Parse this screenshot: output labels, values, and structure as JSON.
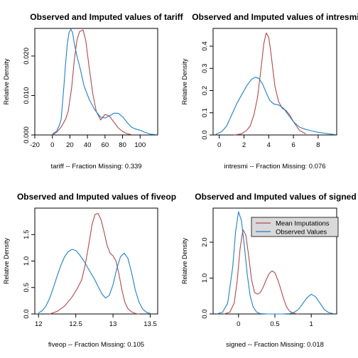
{
  "colors": {
    "imputed": "#b5474b",
    "observed": "#1f7fce"
  },
  "legend": {
    "entries": [
      "Mean Imputations",
      "Observed Values"
    ],
    "placement": "top-right of bottom-right panel"
  },
  "chart_data": [
    {
      "type": "line",
      "title": "Observed and Imputed values of tariff",
      "xlabel": "tariff  --  Fraction Missing: 0.339",
      "ylabel": "Relative Density",
      "xlim": [
        -20,
        120
      ],
      "ylim": [
        0,
        0.027
      ],
      "xticks": [
        -20,
        0,
        20,
        40,
        60,
        80,
        100
      ],
      "yticks": [
        0.0,
        0.01,
        0.02
      ],
      "ytick_labels": [
        "0.000",
        "0.010",
        "0.020"
      ],
      "series": [
        {
          "name": "Mean Imputations",
          "x": [
            0,
            5,
            10,
            15,
            18,
            22,
            25,
            28,
            31,
            35,
            38,
            42,
            46,
            50,
            55,
            60,
            65,
            70,
            75,
            80,
            85,
            90
          ],
          "y": [
            0.0,
            0.0007,
            0.002,
            0.004,
            0.006,
            0.012,
            0.019,
            0.024,
            0.0262,
            0.0266,
            0.024,
            0.017,
            0.0105,
            0.006,
            0.0038,
            0.0052,
            0.0048,
            0.0033,
            0.0018,
            0.0009,
            0.0003,
            0.0001
          ]
        },
        {
          "name": "Observed Values",
          "x": [
            0,
            5,
            8,
            10,
            13,
            15,
            17,
            19,
            21,
            23,
            25,
            28,
            32,
            36,
            42,
            48,
            55,
            60,
            65,
            70,
            75,
            80,
            85,
            90,
            95,
            100,
            105,
            112,
            118
          ],
          "y": [
            0.0002,
            0.001,
            0.0025,
            0.004,
            0.012,
            0.018,
            0.023,
            0.026,
            0.0268,
            0.026,
            0.0232,
            0.02,
            0.0165,
            0.0125,
            0.009,
            0.0065,
            0.0045,
            0.0043,
            0.0048,
            0.0055,
            0.0055,
            0.0046,
            0.0032,
            0.002,
            0.0015,
            0.0012,
            0.0007,
            0.0002,
            0.0001
          ]
        }
      ]
    },
    {
      "type": "line",
      "title": "Observed and Imputed values of intresmi",
      "xlabel": "intresmi  --  Fraction Missing: 0.076",
      "ylabel": "Relative Density",
      "xlim": [
        -0.5,
        9.5
      ],
      "ylim": [
        0,
        0.48
      ],
      "xticks": [
        0,
        2,
        4,
        6,
        8
      ],
      "yticks": [
        0.0,
        0.1,
        0.2,
        0.3,
        0.4
      ],
      "ytick_labels": [
        "0.0",
        "0.1",
        "0.2",
        "0.3",
        "0.4"
      ],
      "series": [
        {
          "name": "Mean Imputations",
          "x": [
            1.2,
            1.8,
            2.2,
            2.5,
            2.8,
            3.1,
            3.4,
            3.6,
            3.8,
            4.0,
            4.2,
            4.5,
            4.8,
            5.1,
            5.4,
            5.7,
            6.0,
            6.5,
            7.0
          ],
          "y": [
            0.0,
            0.005,
            0.02,
            0.04,
            0.09,
            0.17,
            0.31,
            0.41,
            0.46,
            0.44,
            0.36,
            0.22,
            0.15,
            0.12,
            0.11,
            0.09,
            0.06,
            0.02,
            0.005
          ]
        },
        {
          "name": "Observed Values",
          "x": [
            -0.3,
            0.2,
            0.6,
            1.0,
            1.4,
            1.8,
            2.2,
            2.6,
            2.9,
            3.2,
            3.5,
            3.8,
            4.1,
            4.4,
            4.8,
            5.2,
            5.6,
            6.0,
            6.5,
            7.0,
            7.5,
            8.0,
            8.5,
            9.0,
            9.4
          ],
          "y": [
            0.003,
            0.015,
            0.04,
            0.09,
            0.14,
            0.18,
            0.22,
            0.25,
            0.26,
            0.255,
            0.23,
            0.19,
            0.155,
            0.14,
            0.135,
            0.12,
            0.09,
            0.06,
            0.035,
            0.025,
            0.018,
            0.012,
            0.008,
            0.004,
            0.002
          ]
        }
      ]
    },
    {
      "type": "line",
      "title": "Observed and Imputed values of fiveop",
      "xlabel": "fiveop  --  Fraction Missing: 0.105",
      "ylabel": "Relative Density",
      "xlim": [
        11.95,
        13.6
      ],
      "ylim": [
        0,
        2.0
      ],
      "xticks": [
        12.0,
        12.5,
        13.0,
        13.5
      ],
      "yticks": [
        0.0,
        0.5,
        1.0,
        1.5
      ],
      "ytick_labels": [
        "0.0",
        "0.5",
        "1.0",
        "1.5"
      ],
      "series": [
        {
          "name": "Mean Imputations",
          "x": [
            12.15,
            12.25,
            12.35,
            12.45,
            12.52,
            12.58,
            12.63,
            12.68,
            12.72,
            12.76,
            12.8,
            12.84,
            12.88,
            12.92,
            12.96,
            13.0,
            13.04,
            13.08,
            13.12,
            13.16,
            13.2,
            13.25,
            13.3,
            13.35
          ],
          "y": [
            0.0,
            0.05,
            0.15,
            0.32,
            0.48,
            0.65,
            0.95,
            1.35,
            1.7,
            1.88,
            1.9,
            1.78,
            1.55,
            1.3,
            1.15,
            1.1,
            1.0,
            0.75,
            0.45,
            0.22,
            0.1,
            0.04,
            0.01,
            0.0
          ]
        },
        {
          "name": "Observed Values",
          "x": [
            12.0,
            12.05,
            12.1,
            12.15,
            12.2,
            12.25,
            12.3,
            12.35,
            12.4,
            12.45,
            12.5,
            12.55,
            12.6,
            12.65,
            12.7,
            12.75,
            12.8,
            12.85,
            12.9,
            12.95,
            13.0,
            13.05,
            13.1,
            13.15,
            13.2,
            13.25,
            13.3,
            13.35,
            13.4,
            13.45,
            13.5
          ],
          "y": [
            0.02,
            0.06,
            0.15,
            0.3,
            0.5,
            0.72,
            0.92,
            1.08,
            1.18,
            1.22,
            1.2,
            1.12,
            1.02,
            0.9,
            0.78,
            0.66,
            0.52,
            0.38,
            0.3,
            0.35,
            0.55,
            0.85,
            1.08,
            1.15,
            1.05,
            0.78,
            0.45,
            0.22,
            0.09,
            0.03,
            0.01
          ]
        }
      ]
    },
    {
      "type": "line",
      "title": "Observed and Imputed values of signed",
      "xlabel": "signed  --  Fraction Missing: 0.018",
      "ylabel": "Relative Density",
      "xlim": [
        -0.35,
        1.35
      ],
      "ylim": [
        0,
        2.95
      ],
      "xticks": [
        0.0,
        0.5,
        1.0
      ],
      "yticks": [
        0.0,
        1.0,
        2.0
      ],
      "ytick_labels": [
        "0.0",
        "1.0",
        "2.0"
      ],
      "series": [
        {
          "name": "Mean Imputations",
          "x": [
            -0.2,
            -0.12,
            -0.06,
            -0.02,
            0.02,
            0.06,
            0.1,
            0.14,
            0.18,
            0.22,
            0.26,
            0.3,
            0.34,
            0.38,
            0.42,
            0.46,
            0.5,
            0.54,
            0.58,
            0.62,
            0.66,
            0.7,
            0.76,
            0.82
          ],
          "y": [
            0.0,
            0.05,
            0.3,
            0.9,
            1.8,
            2.35,
            2.2,
            1.6,
            0.95,
            0.6,
            0.55,
            0.6,
            0.75,
            0.95,
            1.12,
            1.2,
            1.15,
            0.95,
            0.7,
            0.42,
            0.2,
            0.08,
            0.02,
            0.0
          ]
        },
        {
          "name": "Observed Values",
          "x": [
            -0.3,
            -0.22,
            -0.15,
            -0.08,
            -0.04,
            0.0,
            0.04,
            0.08,
            0.12,
            0.16,
            0.2,
            0.25,
            0.3,
            0.4,
            0.5,
            0.6,
            0.7,
            0.76,
            0.82,
            0.88,
            0.94,
            1.0,
            1.06,
            1.12,
            1.18,
            1.24,
            1.3
          ],
          "y": [
            0.0,
            0.05,
            0.3,
            1.3,
            2.3,
            2.85,
            2.6,
            1.9,
            1.1,
            0.5,
            0.2,
            0.05,
            0.01,
            0.0,
            0.0,
            0.0,
            0.01,
            0.04,
            0.12,
            0.28,
            0.45,
            0.55,
            0.48,
            0.3,
            0.12,
            0.04,
            0.01
          ]
        }
      ]
    }
  ]
}
